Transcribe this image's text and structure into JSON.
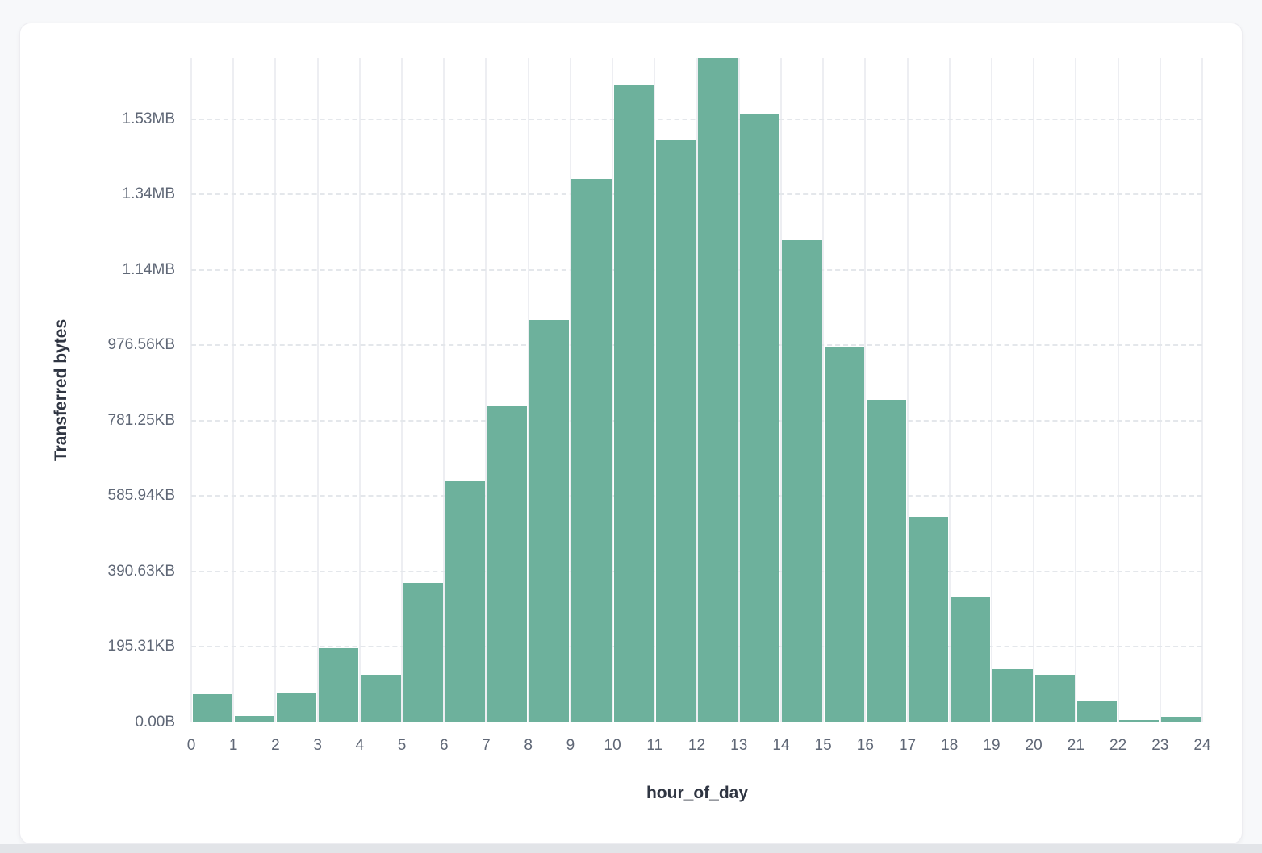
{
  "chart_data": {
    "type": "bar",
    "title": "",
    "xlabel": "hour_of_day",
    "ylabel": "Transferred bytes",
    "categories": [
      0,
      1,
      2,
      3,
      4,
      5,
      6,
      7,
      8,
      9,
      10,
      11,
      12,
      13,
      14,
      15,
      16,
      17,
      18,
      19,
      20,
      21,
      22,
      23
    ],
    "values": [
      75000,
      17000,
      79000,
      197000,
      126000,
      369000,
      641000,
      838000,
      1067000,
      1441000,
      1689000,
      1544000,
      1762000,
      1615000,
      1279000,
      996000,
      855000,
      545000,
      334000,
      141000,
      126000,
      58000,
      6000,
      14000
    ],
    "values_unit": "bytes",
    "x_tick_labels": [
      "0",
      "1",
      "2",
      "3",
      "4",
      "5",
      "6",
      "7",
      "8",
      "9",
      "10",
      "11",
      "12",
      "13",
      "14",
      "15",
      "16",
      "17",
      "18",
      "19",
      "20",
      "21",
      "22",
      "23",
      "24"
    ],
    "y_ticks": [
      {
        "value": 0,
        "label": "0.00B"
      },
      {
        "value": 200000,
        "label": "195.31KB"
      },
      {
        "value": 400000,
        "label": "390.63KB"
      },
      {
        "value": 600000,
        "label": "585.94KB"
      },
      {
        "value": 800000,
        "label": "781.25KB"
      },
      {
        "value": 1000000,
        "label": "976.56KB"
      },
      {
        "value": 1200000,
        "label": "1.14MB"
      },
      {
        "value": 1400000,
        "label": "1.34MB"
      },
      {
        "value": 1600000,
        "label": "1.53MB"
      }
    ],
    "ylim": [
      0,
      1762000
    ],
    "grid": {
      "vertical": "solid",
      "horizontal": "dashed"
    },
    "legend": "none"
  },
  "colors": {
    "bar": "#6db19c",
    "card_background": "#ffffff",
    "page_background": "#f7f8fa",
    "bottom_strip": "#e2e4e8",
    "vertical_gridline": "#edeef2",
    "horizontal_gridline": "#e4e7eb",
    "tick_label": "#5f6776",
    "axis_title": "#2f3542"
  }
}
